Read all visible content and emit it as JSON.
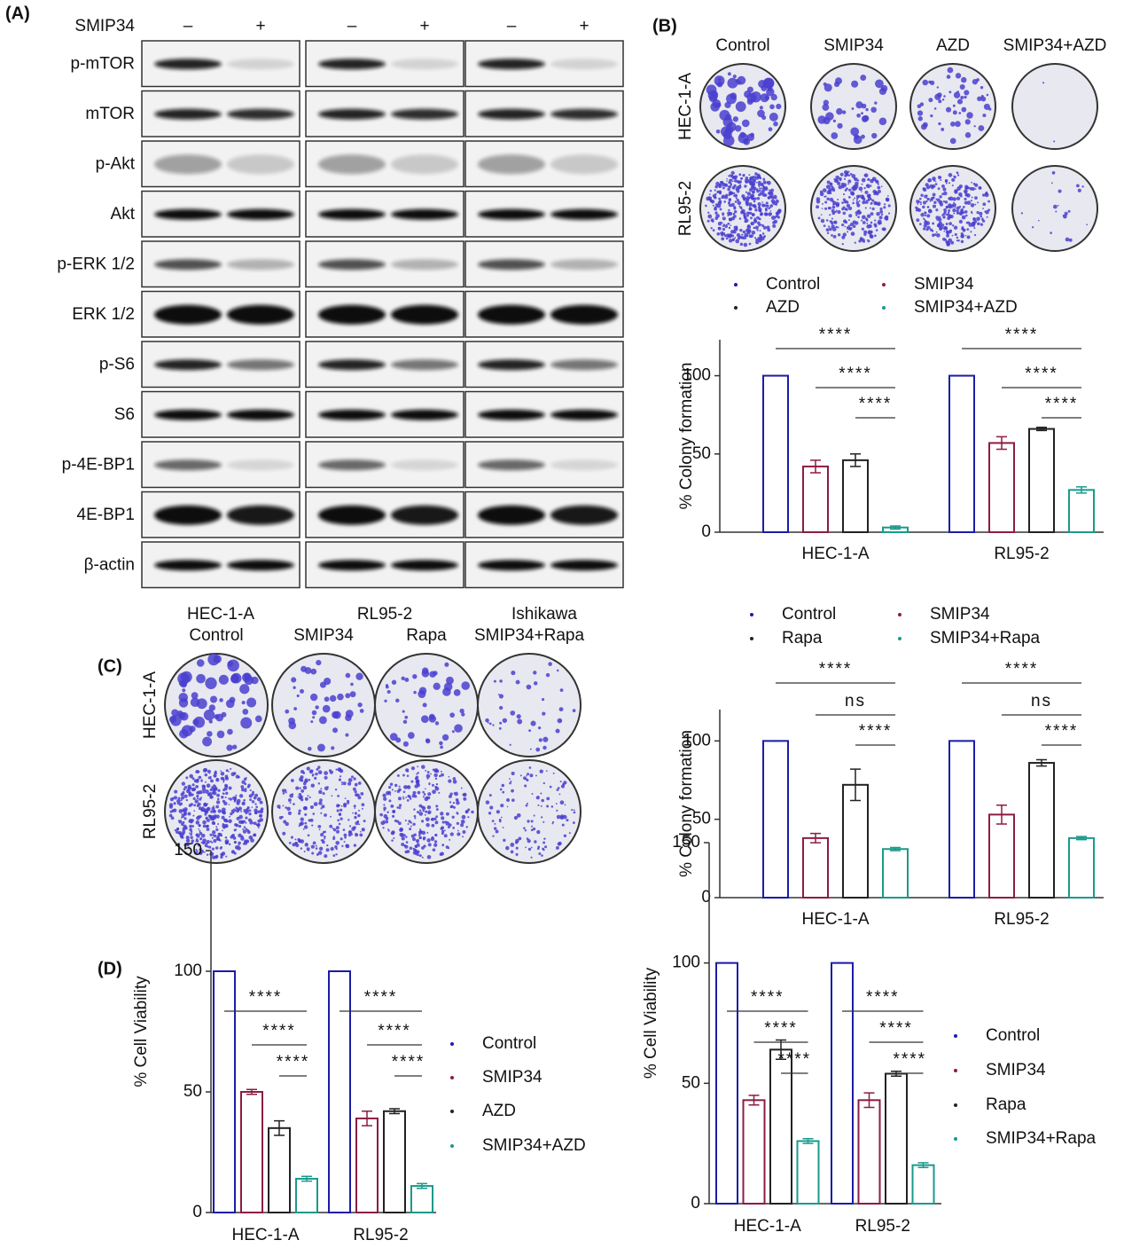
{
  "panel_labels": [
    "(A)",
    "(B)",
    "(C)",
    "(D)"
  ],
  "western_blot": {
    "treatment": "SMIP34",
    "conditions": [
      "–",
      "+"
    ],
    "proteins": [
      "p-mTOR",
      "mTOR",
      "p-Akt",
      "Akt",
      "p-ERK 1/2",
      "ERK 1/2",
      "p-S6",
      "S6",
      "p-4E-BP1",
      "4E-BP1",
      "β-actin"
    ],
    "cell_lines": [
      "HEC-1-A",
      "RL95-2",
      "Ishikawa"
    ]
  },
  "colony_assay_b": {
    "treatments": [
      "Control",
      "SMIP34",
      "AZD",
      "SMIP34+AZD"
    ],
    "cell_lines": [
      "HEC-1-A",
      "RL95-2"
    ]
  },
  "colony_assay_c": {
    "treatments": [
      "Control",
      "SMIP34",
      "Rapa",
      "SMIP34+Rapa"
    ],
    "cell_lines": [
      "HEC-1-A",
      "RL95-2"
    ]
  },
  "chart_data": [
    {
      "type": "bar",
      "y_label": "% Colony formation",
      "categories": [
        "HEC-1-A",
        "RL95-2"
      ],
      "series": [
        {
          "name": "Control",
          "color": "#1c1ca8",
          "values": [
            100,
            100
          ],
          "errors": [
            0,
            0
          ]
        },
        {
          "name": "SMIP34",
          "color": "#8c1c44",
          "values": [
            42,
            57
          ],
          "errors": [
            4,
            4
          ]
        },
        {
          "name": "AZD",
          "color": "#222222",
          "values": [
            46,
            66
          ],
          "errors": [
            4,
            1
          ]
        },
        {
          "name": "SMIP34+AZD",
          "color": "#1a9a8c",
          "values": [
            3,
            27
          ],
          "errors": [
            1,
            2
          ]
        }
      ],
      "ylim": [
        0,
        123
      ],
      "yticks": [
        0,
        50,
        100
      ],
      "annotations": [
        [
          "****",
          "****",
          "****"
        ],
        [
          "****",
          "****",
          "****"
        ]
      ]
    },
    {
      "type": "bar",
      "y_label": "% Colony formation",
      "categories": [
        "HEC-1-A",
        "RL95-2"
      ],
      "series": [
        {
          "name": "Control",
          "color": "#1c1ca8",
          "values": [
            100,
            100
          ],
          "errors": [
            0,
            0
          ]
        },
        {
          "name": "SMIP34",
          "color": "#8c1c44",
          "values": [
            38,
            53
          ],
          "errors": [
            3,
            6
          ]
        },
        {
          "name": "Rapa",
          "color": "#222222",
          "values": [
            72,
            86
          ],
          "errors": [
            10,
            2
          ]
        },
        {
          "name": "SMIP34+Rapa",
          "color": "#1a9a8c",
          "values": [
            31,
            38
          ],
          "errors": [
            1,
            1
          ]
        }
      ],
      "ylim": [
        0,
        120
      ],
      "yticks": [
        0,
        50,
        100
      ],
      "annotations": [
        [
          "****",
          "ns",
          "****"
        ],
        [
          "****",
          "ns",
          "****"
        ]
      ]
    },
    {
      "type": "bar",
      "y_label": "% Cell Viability",
      "categories": [
        "HEC-1-A",
        "RL95-2"
      ],
      "series": [
        {
          "name": "Control",
          "color": "#1c1ca8",
          "values": [
            100,
            100
          ],
          "errors": [
            0,
            0
          ]
        },
        {
          "name": "SMIP34",
          "color": "#8c1c44",
          "values": [
            50,
            39
          ],
          "errors": [
            1,
            3
          ]
        },
        {
          "name": "AZD",
          "color": "#222222",
          "values": [
            35,
            42
          ],
          "errors": [
            3,
            1
          ]
        },
        {
          "name": "SMIP34+AZD",
          "color": "#1a9a8c",
          "values": [
            14,
            11
          ],
          "errors": [
            1,
            1
          ]
        }
      ],
      "ylim": [
        0,
        150
      ],
      "yticks": [
        0,
        50,
        100,
        150
      ],
      "annotations": [
        [
          "****",
          "****",
          "****"
        ],
        [
          "****",
          "****",
          "****"
        ]
      ]
    },
    {
      "type": "bar",
      "y_label": "% Cell Viability",
      "categories": [
        "HEC-1-A",
        "RL95-2"
      ],
      "series": [
        {
          "name": "Control",
          "color": "#1c1ca8",
          "values": [
            100,
            100
          ],
          "errors": [
            0,
            0
          ]
        },
        {
          "name": "SMIP34",
          "color": "#8c1c44",
          "values": [
            43,
            43
          ],
          "errors": [
            2,
            3
          ]
        },
        {
          "name": "Rapa",
          "color": "#222222",
          "values": [
            64,
            54
          ],
          "errors": [
            4,
            1
          ]
        },
        {
          "name": "SMIP34+Rapa",
          "color": "#1a9a8c",
          "values": [
            26,
            16
          ],
          "errors": [
            1,
            1
          ]
        }
      ],
      "ylim": [
        0,
        150
      ],
      "yticks": [
        0,
        50,
        100,
        150
      ],
      "annotations": [
        [
          "****",
          "****",
          "****"
        ],
        [
          "****",
          "****",
          "****"
        ]
      ]
    }
  ]
}
